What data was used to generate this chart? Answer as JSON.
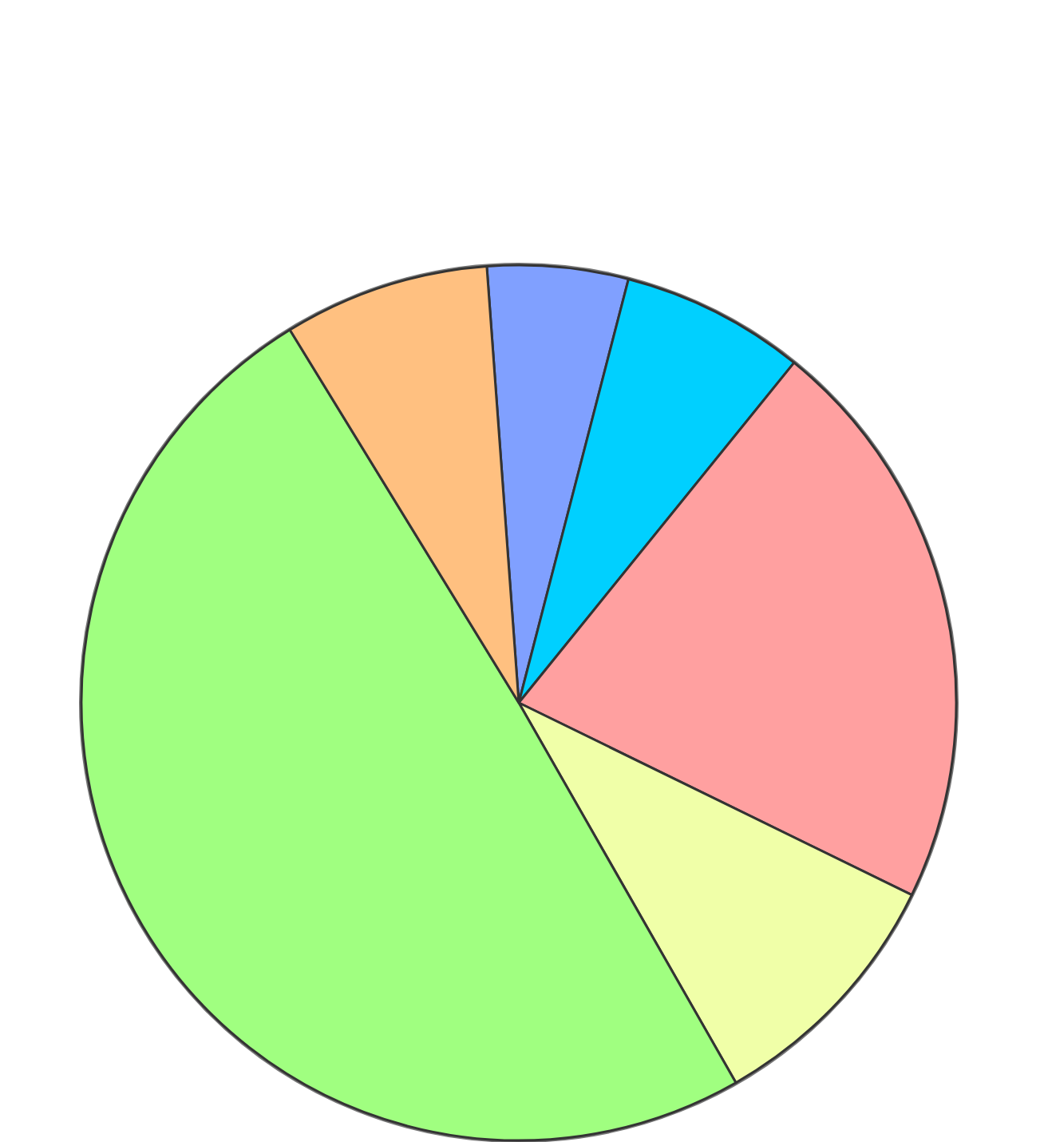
{
  "chart_data": {
    "type": "pie",
    "categories": [
      null,
      null,
      null,
      null,
      null,
      null
    ],
    "values": [
      5.2,
      6.8,
      21.4,
      9.5,
      49.5,
      7.6
    ],
    "colors": [
      "#80a0ff",
      "#00d0ff",
      "#ffa0a0",
      "#f0ffa8",
      "#a0ff80",
      "#ffc080"
    ]
  }
}
